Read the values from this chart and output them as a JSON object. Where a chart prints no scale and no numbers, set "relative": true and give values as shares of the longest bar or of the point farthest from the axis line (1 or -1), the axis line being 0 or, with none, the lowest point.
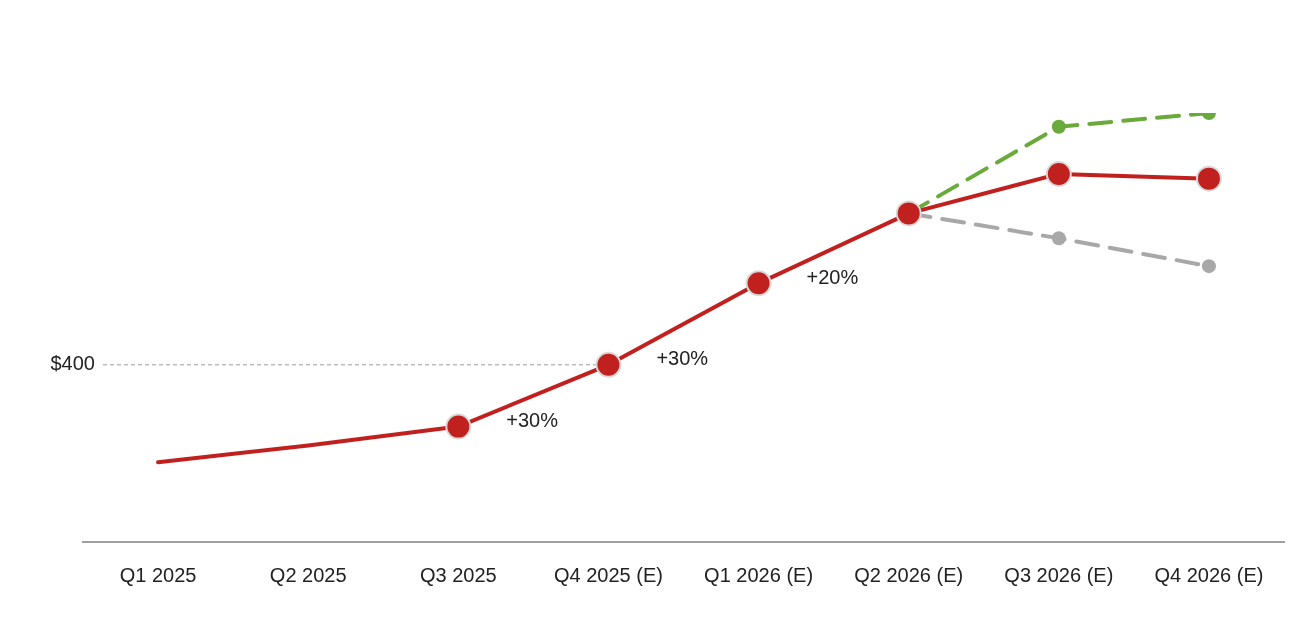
{
  "chart_data": {
    "type": "line",
    "relative": true,
    "legend": false,
    "tick_labels": "x",
    "categories": [
      "Q1 2025",
      "Q2 2025",
      "Q3 2025",
      "Q4 2025 (E)",
      "Q1 2026 (E)",
      "Q2 2026 (E)",
      "Q3 2026 (E)",
      "Q4 2026 (E)"
    ],
    "series": [
      {
        "color": "#6aaa3a",
        "line_style": "dashed",
        "marker": "circle",
        "values": [
          null,
          null,
          null,
          null,
          null,
          0.766,
          0.968,
          1
        ]
      },
      {
        "color": "#a8a8a8",
        "line_style": "dashed",
        "marker": "circle",
        "values": [
          null,
          null,
          null,
          null,
          null,
          0.766,
          0.708,
          0.643
        ]
      },
      {
        "color": "#c0211f",
        "line_style": "solid",
        "marker": "none",
        "values": [
          0.186,
          0.225,
          0.269,
          null,
          null,
          null,
          null,
          null
        ]
      },
      {
        "color": "#c0211f",
        "line_style": "solid",
        "marker": "circle",
        "values": [
          null,
          null,
          0.269,
          0.413,
          0.603,
          0.766,
          0.858,
          0.847
        ]
      }
    ],
    "ref_lines": [
      {
        "axis": "y",
        "value": 0.413,
        "color": "#999999",
        "line_style": "dashed"
      }
    ],
    "annotations": [
      "$400",
      {
        "text": "+30%",
        "x": "Q3 2025",
        "y": 0.269
      },
      {
        "text": "+30%",
        "x": "Q4 2025 (E)",
        "y": 0.413
      },
      {
        "text": "+20%",
        "x": "Q1 2026 (E)",
        "y": 0.603
      }
    ]
  }
}
